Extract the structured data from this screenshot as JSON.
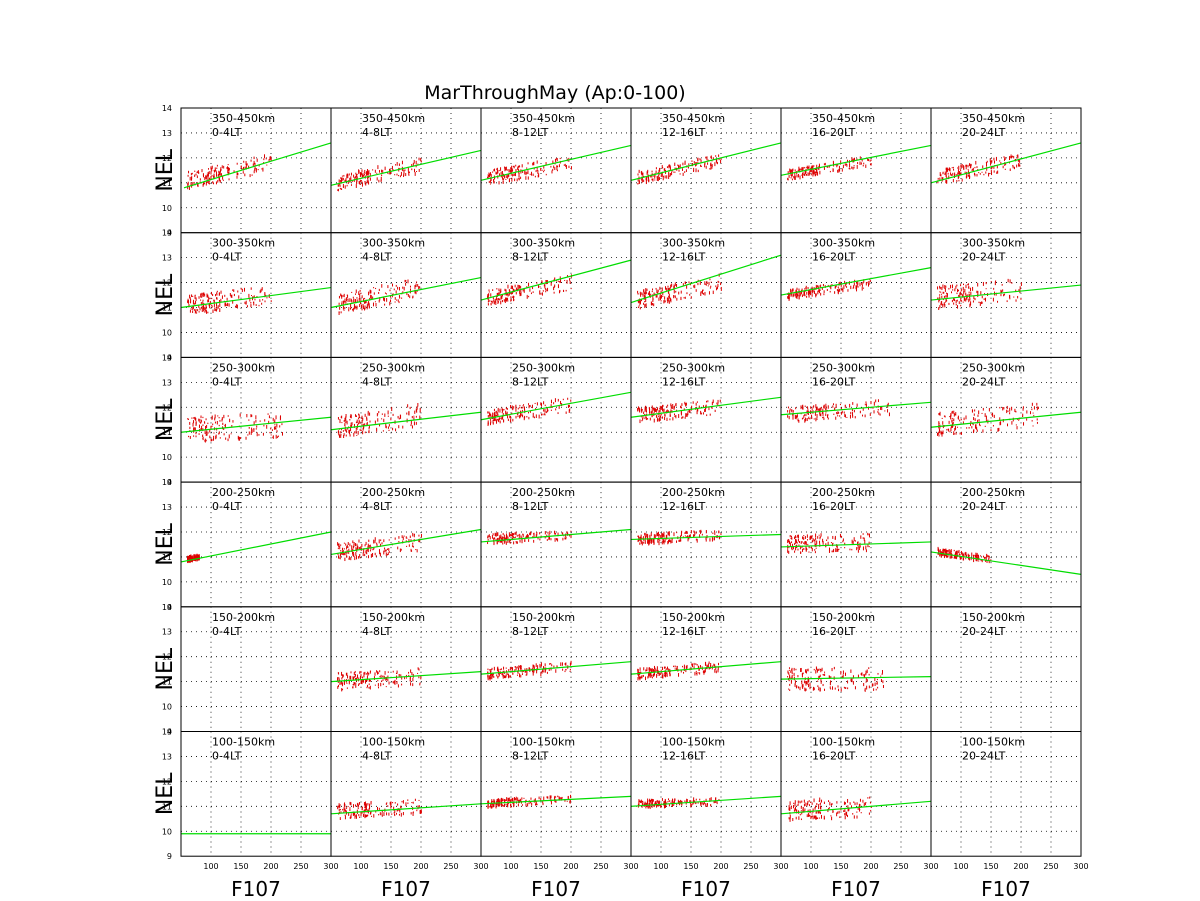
{
  "chart_data": {
    "type": "scatter",
    "title": "MarThroughMay (Ap:0-100)",
    "xlabel": "F107",
    "ylabel": "NEL",
    "xlim": [
      50,
      300
    ],
    "ylim": [
      9,
      14
    ],
    "x_ticks": [
      100,
      150,
      200,
      250,
      300
    ],
    "y_ticks": [
      9,
      10,
      11,
      12,
      13,
      14
    ],
    "grid": true,
    "altitude_bands": [
      "350-450km",
      "300-350km",
      "250-300km",
      "200-250km",
      "150-200km",
      "100-150km"
    ],
    "local_time_bins": [
      "0-4LT",
      "4-8LT",
      "8-12LT",
      "12-16LT",
      "16-20LT",
      "20-24LT"
    ],
    "colors": {
      "points": "#dd0000",
      "fit": "#00dd00",
      "grid": "#000000"
    },
    "panels": [
      [
        {
          "fit": [
            [
              55,
              10.8
            ],
            [
              300,
              12.6
            ]
          ],
          "points": {
            "xr": [
              60,
              200
            ],
            "center": [
              11.1,
              11.8
            ],
            "spread": 0.35
          }
        },
        {
          "fit": [
            [
              50,
              10.9
            ],
            [
              300,
              12.3
            ]
          ],
          "points": {
            "xr": [
              60,
              200
            ],
            "center": [
              11.0,
              11.7
            ],
            "spread": 0.3
          }
        },
        {
          "fit": [
            [
              50,
              11.1
            ],
            [
              300,
              12.5
            ]
          ],
          "points": {
            "xr": [
              60,
              200
            ],
            "center": [
              11.2,
              11.8
            ],
            "spread": 0.3
          }
        },
        {
          "fit": [
            [
              50,
              11.1
            ],
            [
              300,
              12.6
            ]
          ],
          "points": {
            "xr": [
              60,
              200
            ],
            "center": [
              11.2,
              11.9
            ],
            "spread": 0.25
          }
        },
        {
          "fit": [
            [
              50,
              11.3
            ],
            [
              300,
              12.5
            ]
          ],
          "points": {
            "xr": [
              60,
              200
            ],
            "center": [
              11.3,
              11.9
            ],
            "spread": 0.2
          }
        },
        {
          "fit": [
            [
              50,
              11.0
            ],
            [
              300,
              12.6
            ]
          ],
          "points": {
            "xr": [
              60,
              200
            ],
            "center": [
              11.2,
              11.9
            ],
            "spread": 0.3
          }
        }
      ],
      [
        {
          "fit": [
            [
              50,
              11.0
            ],
            [
              300,
              11.8
            ]
          ],
          "points": {
            "xr": [
              60,
              200
            ],
            "center": [
              11.1,
              11.5
            ],
            "spread": 0.4
          }
        },
        {
          "fit": [
            [
              50,
              11.0
            ],
            [
              300,
              12.2
            ]
          ],
          "points": {
            "xr": [
              60,
              200
            ],
            "center": [
              11.1,
              11.8
            ],
            "spread": 0.4
          }
        },
        {
          "fit": [
            [
              50,
              11.3
            ],
            [
              300,
              12.9
            ]
          ],
          "points": {
            "xr": [
              60,
              200
            ],
            "center": [
              11.4,
              12.0
            ],
            "spread": 0.3
          }
        },
        {
          "fit": [
            [
              50,
              11.2
            ],
            [
              300,
              13.1
            ]
          ],
          "points": {
            "xr": [
              60,
              200
            ],
            "center": [
              11.3,
              12.0
            ],
            "spread": 0.35
          }
        },
        {
          "fit": [
            [
              50,
              11.5
            ],
            [
              300,
              12.6
            ]
          ],
          "points": {
            "xr": [
              60,
              200
            ],
            "center": [
              11.5,
              12.0
            ],
            "spread": 0.2
          }
        },
        {
          "fit": [
            [
              50,
              11.3
            ],
            [
              300,
              11.9
            ]
          ],
          "points": {
            "xr": [
              60,
              200
            ],
            "center": [
              11.4,
              11.7
            ],
            "spread": 0.45
          }
        }
      ],
      [
        {
          "fit": [
            [
              50,
              11.0
            ],
            [
              300,
              11.6
            ]
          ],
          "points": {
            "xr": [
              60,
              220
            ],
            "center": [
              11.1,
              11.3
            ],
            "spread": 0.5
          }
        },
        {
          "fit": [
            [
              50,
              11.1
            ],
            [
              300,
              11.8
            ]
          ],
          "points": {
            "xr": [
              60,
              200
            ],
            "center": [
              11.2,
              11.7
            ],
            "spread": 0.45
          }
        },
        {
          "fit": [
            [
              50,
              11.5
            ],
            [
              300,
              12.6
            ]
          ],
          "points": {
            "xr": [
              60,
              200
            ],
            "center": [
              11.6,
              12.1
            ],
            "spread": 0.3
          }
        },
        {
          "fit": [
            [
              50,
              11.6
            ],
            [
              300,
              12.4
            ]
          ],
          "points": {
            "xr": [
              60,
              200
            ],
            "center": [
              11.7,
              12.0
            ],
            "spread": 0.3
          }
        },
        {
          "fit": [
            [
              50,
              11.7
            ],
            [
              300,
              12.2
            ]
          ],
          "points": {
            "xr": [
              60,
              230
            ],
            "center": [
              11.7,
              12.0
            ],
            "spread": 0.3
          }
        },
        {
          "fit": [
            [
              50,
              11.2
            ],
            [
              300,
              11.8
            ]
          ],
          "points": {
            "xr": [
              60,
              230
            ],
            "center": [
              11.3,
              11.7
            ],
            "spread": 0.45
          }
        }
      ],
      [
        {
          "fit": [
            [
              50,
              10.8
            ],
            [
              300,
              12.0
            ]
          ],
          "points": {
            "xr": [
              60,
              80
            ],
            "center": [
              10.9,
              11.0
            ],
            "spread": 0.1
          }
        },
        {
          "fit": [
            [
              50,
              11.1
            ],
            [
              300,
              12.1
            ]
          ],
          "points": {
            "xr": [
              60,
              200
            ],
            "center": [
              11.2,
              11.6
            ],
            "spread": 0.35
          }
        },
        {
          "fit": [
            [
              50,
              11.6
            ],
            [
              300,
              12.1
            ]
          ],
          "points": {
            "xr": [
              60,
              200
            ],
            "center": [
              11.7,
              11.9
            ],
            "spread": 0.2
          }
        },
        {
          "fit": [
            [
              50,
              11.7
            ],
            [
              300,
              11.9
            ]
          ],
          "points": {
            "xr": [
              60,
              200
            ],
            "center": [
              11.7,
              11.9
            ],
            "spread": 0.2
          }
        },
        {
          "fit": [
            [
              50,
              11.4
            ],
            [
              300,
              11.6
            ]
          ],
          "points": {
            "xr": [
              60,
              200
            ],
            "center": [
              11.5,
              11.6
            ],
            "spread": 0.35
          }
        },
        {
          "fit": [
            [
              50,
              11.2
            ],
            [
              300,
              10.3
            ]
          ],
          "points": {
            "xr": [
              60,
              150
            ],
            "center": [
              11.2,
              10.9
            ],
            "spread": 0.15
          }
        }
      ],
      [
        {
          "fit": null,
          "points": null
        },
        {
          "fit": [
            [
              50,
              11.0
            ],
            [
              300,
              11.4
            ]
          ],
          "points": {
            "xr": [
              60,
              200
            ],
            "center": [
              11.0,
              11.2
            ],
            "spread": 0.35
          }
        },
        {
          "fit": [
            [
              50,
              11.3
            ],
            [
              300,
              11.8
            ]
          ],
          "points": {
            "xr": [
              60,
              200
            ],
            "center": [
              11.3,
              11.6
            ],
            "spread": 0.2
          }
        },
        {
          "fit": [
            [
              50,
              11.3
            ],
            [
              300,
              11.8
            ]
          ],
          "points": {
            "xr": [
              60,
              200
            ],
            "center": [
              11.3,
              11.6
            ],
            "spread": 0.2
          }
        },
        {
          "fit": [
            [
              50,
              11.1
            ],
            [
              300,
              11.2
            ]
          ],
          "points": {
            "xr": [
              60,
              220
            ],
            "center": [
              11.1,
              11.1
            ],
            "spread": 0.45
          }
        },
        {
          "fit": null,
          "points": null
        }
      ],
      [
        {
          "fit": [
            [
              50,
              9.9
            ],
            [
              300,
              9.9
            ]
          ],
          "points": null
        },
        {
          "fit": [
            [
              50,
              10.7
            ],
            [
              300,
              11.1
            ]
          ],
          "points": {
            "xr": [
              60,
              200
            ],
            "center": [
              10.8,
              11.0
            ],
            "spread": 0.3
          }
        },
        {
          "fit": [
            [
              50,
              11.1
            ],
            [
              300,
              11.4
            ]
          ],
          "points": {
            "xr": [
              60,
              200
            ],
            "center": [
              11.1,
              11.3
            ],
            "spread": 0.15
          }
        },
        {
          "fit": [
            [
              50,
              11.0
            ],
            [
              300,
              11.4
            ]
          ],
          "points": {
            "xr": [
              60,
              200
            ],
            "center": [
              11.1,
              11.2
            ],
            "spread": 0.15
          }
        },
        {
          "fit": [
            [
              50,
              10.7
            ],
            [
              300,
              11.2
            ]
          ],
          "points": {
            "xr": [
              60,
              200
            ],
            "center": [
              10.8,
              11.0
            ],
            "spread": 0.4
          }
        },
        {
          "fit": null,
          "points": null
        }
      ]
    ]
  }
}
